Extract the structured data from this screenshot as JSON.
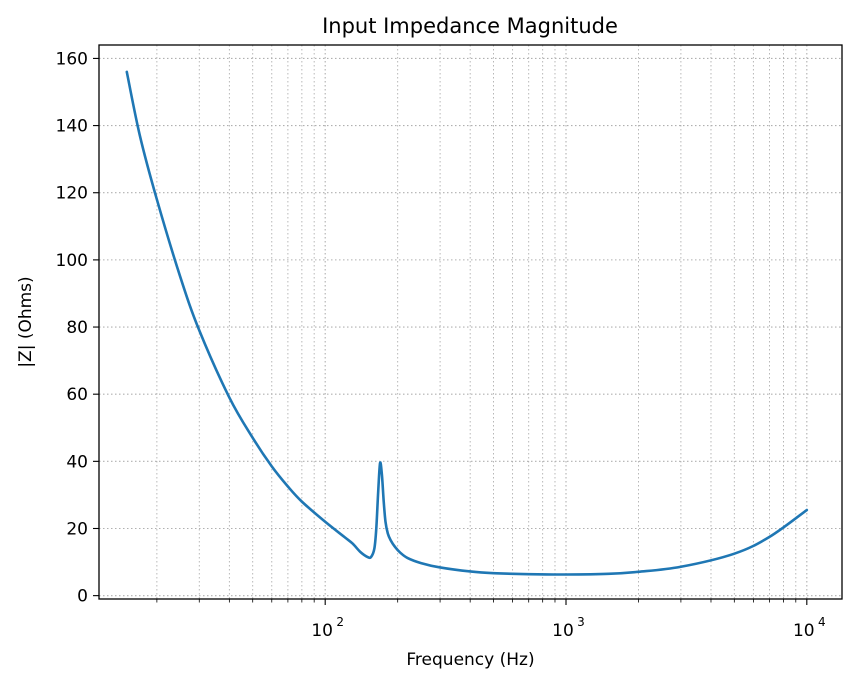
{
  "chart_data": {
    "type": "line",
    "title": "Input Impedance Magnitude",
    "xlabel": "Frequency (Hz)",
    "ylabel": "|Z| (Ohms)",
    "xscale": "log",
    "xlim": [
      11.5,
      14000
    ],
    "ylim": [
      -1,
      164
    ],
    "grid": "both",
    "x_tick_labels": [
      {
        "base": "10",
        "exp": "2",
        "value": 100
      },
      {
        "base": "10",
        "exp": "3",
        "value": 1000
      },
      {
        "base": "10",
        "exp": "4",
        "value": 10000
      }
    ],
    "y_ticks": [
      0,
      20,
      40,
      60,
      80,
      100,
      120,
      140,
      160
    ],
    "series": [
      {
        "color": "#1f77b4",
        "x": [
          15,
          17,
          20,
          25,
          30,
          40,
          50,
          60,
          70,
          80,
          100,
          120,
          130,
          140,
          150,
          155,
          160,
          163,
          166,
          169,
          172,
          175,
          178,
          182,
          187,
          195,
          205,
          220,
          250,
          300,
          400,
          500,
          700,
          1000,
          1500,
          2000,
          3000,
          5000,
          7000,
          10000
        ],
        "y": [
          156,
          137,
          118,
          95,
          79,
          59,
          47,
          38.5,
          32.5,
          28,
          22,
          17.5,
          15.5,
          13,
          11.5,
          11.5,
          14,
          20,
          31,
          39.5,
          36,
          28,
          22,
          18.5,
          16.5,
          14.5,
          12.8,
          11.2,
          9.7,
          8.4,
          7.2,
          6.7,
          6.4,
          6.3,
          6.5,
          7.1,
          8.6,
          12.5,
          17.5,
          25.5
        ]
      }
    ]
  }
}
